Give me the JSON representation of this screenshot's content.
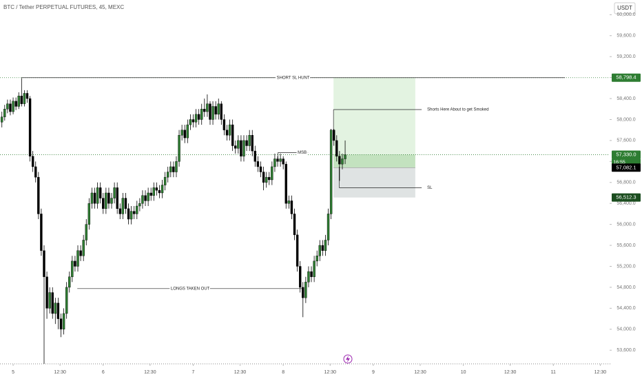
{
  "chart_data": {
    "type": "candlestick",
    "title": "BTC / Tether PERPETUAL FUTURES, 45, MEXC",
    "currency": "USDT",
    "up_color": "#2e7d32",
    "down_color": "#000000",
    "x": [
      -3,
      -2.25,
      -1.5,
      -0.75,
      0,
      0.75,
      1.5,
      2.25,
      3,
      3.75,
      4.5,
      5.25,
      6,
      6.75,
      7.5,
      8.25,
      9,
      9.75,
      10.5,
      11.25,
      12,
      12.75,
      13.5,
      14.25,
      15,
      15.75,
      16.5,
      17.25,
      18,
      18.75,
      19.5,
      20.25,
      21,
      21.75,
      22.5,
      23.25,
      24,
      24.75,
      25.5,
      26.25,
      27,
      27.75,
      28.5,
      29.25,
      30,
      30.75,
      31.5,
      32.25,
      33,
      33.75,
      34.5,
      35.25,
      36,
      36.75,
      37.5,
      38.25,
      39,
      39.75,
      40.5,
      41.25,
      42,
      42.75,
      43.5,
      44.25,
      45,
      45.75,
      46.5,
      47.25,
      48,
      48.75,
      49.5,
      50.25,
      51,
      51.75,
      52.5,
      53.25,
      54,
      54.75,
      55.5,
      56.25,
      57,
      57.75,
      58.5,
      59.25,
      60,
      60.75,
      61.5,
      62.25,
      63,
      63.75,
      64.5,
      65.25,
      66,
      66.75,
      67.5,
      68.25,
      69,
      69.75,
      70.5,
      71.25,
      72,
      72.75,
      73.5,
      74.25,
      75,
      75.75,
      76.5,
      77.25,
      78,
      78.75,
      79.5,
      80.25,
      81,
      81.75,
      82.5,
      83.25,
      84,
      84.75,
      85.5,
      86.25,
      87,
      87.75,
      88.5
    ],
    "open": [
      57950,
      58050,
      58200,
      58300,
      58150,
      58350,
      58250,
      58450,
      58300,
      58500,
      58400,
      57300,
      57100,
      56900,
      56200,
      55500,
      55000,
      54400,
      54700,
      54300,
      54500,
      54200,
      54000,
      54300,
      54800,
      55000,
      55300,
      55200,
      55500,
      55400,
      55700,
      56000,
      56400,
      56600,
      56400,
      56700,
      56500,
      56300,
      56600,
      56400,
      56500,
      56700,
      56300,
      56200,
      56500,
      56300,
      56100,
      56250,
      56200,
      56350,
      56400,
      56550,
      56450,
      56600,
      56550,
      56700,
      56650,
      56600,
      56750,
      56900,
      57000,
      57100,
      57000,
      57200,
      57700,
      57800,
      57650,
      57900,
      58000,
      57950,
      58100,
      58000,
      58200,
      58150,
      58300,
      58000,
      58250,
      58100,
      58300,
      58000,
      57800,
      57700,
      57900,
      57500,
      57450,
      57600,
      57300,
      57600,
      57500,
      57700,
      57400,
      57200,
      57100,
      57000,
      56800,
      56900,
      56850,
      57100,
      57250,
      57200,
      57250,
      57150,
      56400,
      56450,
      56200,
      55800,
      55200,
      54800,
      54600,
      54900,
      55100,
      55000,
      55300,
      55400,
      55600,
      55500,
      55700,
      56200,
      57800,
      57600,
      57300,
      57150,
      57250
    ],
    "high": [
      58150,
      58280,
      58380,
      58380,
      58420,
      58420,
      58520,
      58790,
      58560,
      58560,
      58450,
      57400,
      57200,
      57000,
      56300,
      55600,
      55100,
      54800,
      54800,
      54600,
      54600,
      54300,
      54400,
      54900,
      55100,
      55400,
      55400,
      55600,
      55600,
      55800,
      56100,
      56500,
      56700,
      56700,
      56800,
      56800,
      56600,
      56700,
      56700,
      56600,
      56800,
      56800,
      56400,
      56600,
      56600,
      56400,
      56350,
      56350,
      56450,
      56500,
      56650,
      56650,
      56700,
      56700,
      56800,
      56800,
      56750,
      56850,
      57000,
      57100,
      57200,
      57200,
      57300,
      57800,
      57900,
      57900,
      58000,
      58100,
      58100,
      58200,
      58200,
      58300,
      58400,
      58480,
      58350,
      58350,
      58350,
      58400,
      58350,
      58100,
      57900,
      58000,
      58000,
      57600,
      57700,
      57700,
      57700,
      57700,
      57800,
      57800,
      57500,
      57300,
      57200,
      57100,
      57000,
      57000,
      57200,
      57350,
      57300,
      57350,
      57300,
      57200,
      56550,
      56550,
      56300,
      55900,
      55300,
      54900,
      55000,
      55200,
      55200,
      55400,
      55500,
      55700,
      55700,
      55800,
      56300,
      57820,
      57820,
      57700,
      57400,
      57350,
      57600
    ],
    "low": [
      57850,
      57980,
      58120,
      58080,
      58100,
      58180,
      58200,
      58250,
      58250,
      58320,
      57200,
      57000,
      56800,
      56100,
      55400,
      53340,
      54200,
      54300,
      54200,
      54100,
      54000,
      53850,
      53900,
      54200,
      54700,
      54900,
      55100,
      55100,
      55300,
      55300,
      55600,
      55900,
      56300,
      56300,
      56300,
      56400,
      56200,
      56200,
      56300,
      56300,
      56400,
      56200,
      56100,
      56100,
      56200,
      56000,
      56000,
      56100,
      56100,
      56250,
      56300,
      56350,
      56350,
      56450,
      56450,
      56550,
      56500,
      56500,
      56650,
      56800,
      56900,
      56900,
      56900,
      57100,
      57600,
      57550,
      57550,
      57800,
      57850,
      57850,
      57900,
      57900,
      58050,
      58050,
      57900,
      57900,
      58000,
      58000,
      57900,
      57700,
      57600,
      57600,
      57400,
      57350,
      57350,
      57200,
      57200,
      57400,
      57400,
      57300,
      57100,
      57000,
      56900,
      56650,
      56700,
      56750,
      56750,
      57000,
      57100,
      57100,
      57050,
      56300,
      56300,
      56100,
      55700,
      55100,
      54700,
      54230,
      54500,
      54800,
      54900,
      54900,
      55200,
      55300,
      55400,
      55400,
      55600,
      56100,
      57500,
      57200,
      56830,
      57050,
      57150
    ],
    "close": [
      58050,
      58200,
      58300,
      58150,
      58350,
      58250,
      58450,
      58300,
      58500,
      58400,
      57300,
      57100,
      56900,
      56200,
      55500,
      55000,
      54400,
      54700,
      54300,
      54500,
      54200,
      54000,
      54300,
      54800,
      55000,
      55300,
      55200,
      55500,
      55400,
      55700,
      56000,
      56400,
      56600,
      56400,
      56700,
      56500,
      56300,
      56600,
      56400,
      56500,
      56700,
      56300,
      56200,
      56500,
      56300,
      56100,
      56250,
      56200,
      56350,
      56400,
      56550,
      56450,
      56600,
      56550,
      56700,
      56650,
      56600,
      56750,
      56900,
      57000,
      57100,
      57000,
      57200,
      57700,
      57800,
      57650,
      57900,
      58000,
      57950,
      58100,
      58000,
      58200,
      58150,
      58300,
      58000,
      58250,
      58100,
      58300,
      58000,
      57800,
      57700,
      57900,
      57500,
      57450,
      57600,
      57300,
      57600,
      57500,
      57700,
      57400,
      57200,
      57100,
      57000,
      56800,
      56900,
      56850,
      57100,
      57250,
      57200,
      57250,
      57150,
      56400,
      56450,
      56200,
      55800,
      55200,
      54800,
      54600,
      54900,
      55100,
      55000,
      55300,
      55400,
      55600,
      55500,
      55700,
      56200,
      57800,
      57600,
      57300,
      57150,
      57250,
      57330
    ],
    "xlim": [
      -3.5,
      159
    ],
    "ylim": [
      53340,
      60280
    ],
    "xticks": [
      {
        "value": 0,
        "label": "5"
      },
      {
        "value": 12.5,
        "label": "12:30"
      },
      {
        "value": 24,
        "label": "6"
      },
      {
        "value": 36.5,
        "label": "12:30"
      },
      {
        "value": 48,
        "label": "7"
      },
      {
        "value": 60.5,
        "label": "12:30"
      },
      {
        "value": 72,
        "label": "8"
      },
      {
        "value": 84.5,
        "label": "12:30"
      },
      {
        "value": 96,
        "label": "9"
      },
      {
        "value": 108.5,
        "label": "12:30"
      },
      {
        "value": 120,
        "label": "10"
      },
      {
        "value": 132.5,
        "label": "12:30"
      },
      {
        "value": 144,
        "label": "11"
      },
      {
        "value": 156.5,
        "label": "12:30"
      }
    ],
    "yticks": [
      {
        "value": 60000,
        "label": "60,000.0"
      },
      {
        "value": 59600,
        "label": "59,600.0"
      },
      {
        "value": 59200,
        "label": "59,200.0"
      },
      {
        "value": 58800,
        "label": "58,800.0"
      },
      {
        "value": 58400,
        "label": "58,400.0"
      },
      {
        "value": 58000,
        "label": "58,000.0"
      },
      {
        "value": 57600,
        "label": "57,600.0"
      },
      {
        "value": 57200,
        "label": "57,200.0"
      },
      {
        "value": 56800,
        "label": "56,800.0"
      },
      {
        "value": 56400,
        "label": "56,400.0"
      },
      {
        "value": 56000,
        "label": "56,000.0"
      },
      {
        "value": 55600,
        "label": "55,600.0"
      },
      {
        "value": 55200,
        "label": "55,200.0"
      },
      {
        "value": 54800,
        "label": "54,800.0"
      },
      {
        "value": 54400,
        "label": "54,400.0"
      },
      {
        "value": 54000,
        "label": "54,000.0"
      },
      {
        "value": 53600,
        "label": "53,600.0"
      }
    ],
    "price_labels": [
      {
        "value": 58798.4,
        "label": "58,798.4",
        "color": "#2e7d32",
        "line": true
      },
      {
        "value": 57330,
        "label": "57,330.0",
        "color": "#2e7d32",
        "line": true
      },
      {
        "value": 57082.1,
        "label": "57,082.1",
        "color": "#000000",
        "line": false
      },
      {
        "value": 56512.3,
        "label": "56,512.3",
        "color": "#1b4d1f",
        "line": false
      }
    ],
    "countdown": "16:55",
    "position": {
      "x_start": 85.4,
      "x_end": 107.2,
      "target": 58798.4,
      "current": 57330,
      "entry": 57082.1,
      "stop": 56512.3
    },
    "annotations": [
      {
        "text": "SHORT SL HUNT",
        "price": 58798.4,
        "x_start": 2.2,
        "x_end": 147.1,
        "label_pos": "center"
      },
      {
        "text": "LONGS TAKEN OUT",
        "price": 54775,
        "x_start": 17.1,
        "x_end": 77.3,
        "label_pos": "center"
      },
      {
        "text": "MSB",
        "price": 57370,
        "x_start": 70.6,
        "x_end": 78.6,
        "y_from": 57200,
        "label_pos": "end"
      },
      {
        "text": "Shorts Here About to get Smoked",
        "price": 58190,
        "x_start": 85.4,
        "x_end": 108.9,
        "y_from": 57800,
        "label_pos": "right"
      },
      {
        "text": "SL",
        "price": 56700,
        "x_start": 86.9,
        "x_end": 108.9,
        "y_from": 57100,
        "label_pos": "right"
      }
    ]
  }
}
